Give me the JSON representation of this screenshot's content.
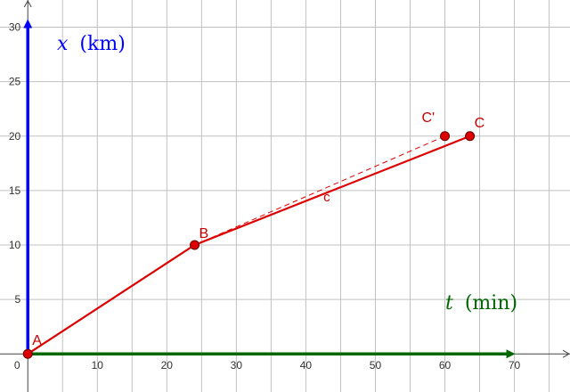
{
  "chart_data": {
    "type": "line",
    "xlim": [
      -4,
      78
    ],
    "ylim": [
      -3.5,
      32.5
    ],
    "x_ticks": [
      0,
      10,
      20,
      30,
      40,
      50,
      60,
      70
    ],
    "y_ticks": [
      5,
      10,
      15,
      20,
      25,
      30
    ],
    "grid": true,
    "axes": {
      "x": {
        "var": "t",
        "unit": "(min)",
        "color": "#006600",
        "arrow_to": 70
      },
      "y": {
        "var": "x",
        "unit": "(km)",
        "color": "#0000ff",
        "arrow_to": 30
      }
    },
    "points": [
      {
        "name": "A",
        "x": 0,
        "y": 0
      },
      {
        "name": "B",
        "x": 24,
        "y": 10
      },
      {
        "name": "C'",
        "x": 60,
        "y": 20
      },
      {
        "name": "C",
        "x": 63.6,
        "y": 20
      }
    ],
    "series": [
      {
        "name": "",
        "style": "solid",
        "color": "#dd0000",
        "x": [
          0,
          24,
          63.6
        ],
        "y": [
          0,
          10,
          20
        ]
      },
      {
        "name": "",
        "style": "dashed",
        "color": "#dd0000",
        "x": [
          24,
          60
        ],
        "y": [
          10,
          20
        ]
      }
    ],
    "annotations": [
      {
        "text": "c",
        "x": 43,
        "y": 14
      }
    ]
  }
}
